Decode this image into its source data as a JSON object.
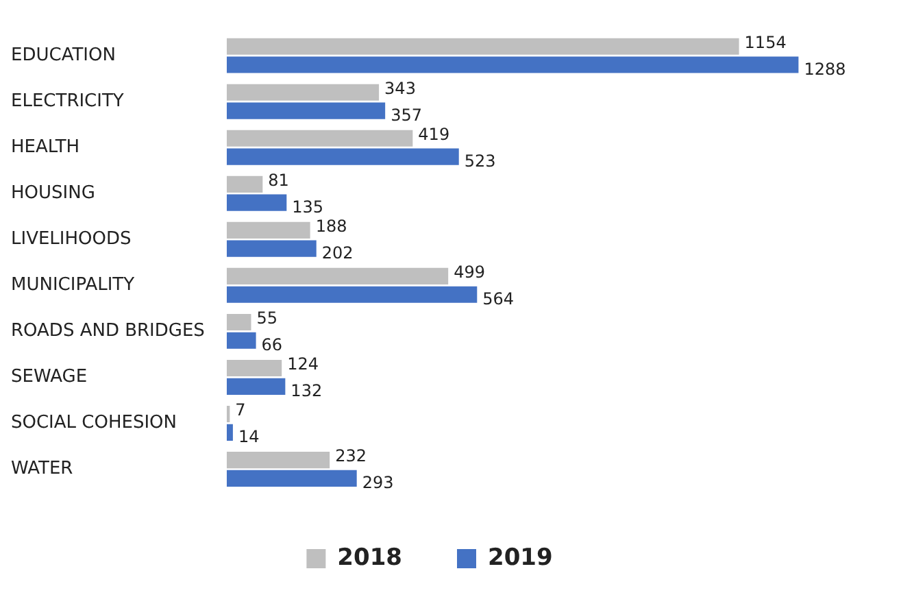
{
  "chart_data": {
    "type": "bar",
    "orientation": "horizontal",
    "categories": [
      "EDUCATION",
      "ELECTRICITY",
      "HEALTH",
      "HOUSING",
      "LIVELIHOODS",
      "MUNICIPALITY",
      "ROADS AND BRIDGES",
      "SEWAGE",
      "SOCIAL COHESION",
      "WATER"
    ],
    "series": [
      {
        "name": "2018",
        "color": "#bfbfbf",
        "values": [
          1154,
          343,
          419,
          81,
          188,
          499,
          55,
          124,
          7,
          232
        ]
      },
      {
        "name": "2019",
        "color": "#4472c4",
        "values": [
          1288,
          357,
          523,
          135,
          202,
          564,
          66,
          132,
          14,
          293
        ]
      }
    ],
    "data_labels": true,
    "legend": "bottom",
    "grid": false,
    "tick_labels": "y"
  }
}
